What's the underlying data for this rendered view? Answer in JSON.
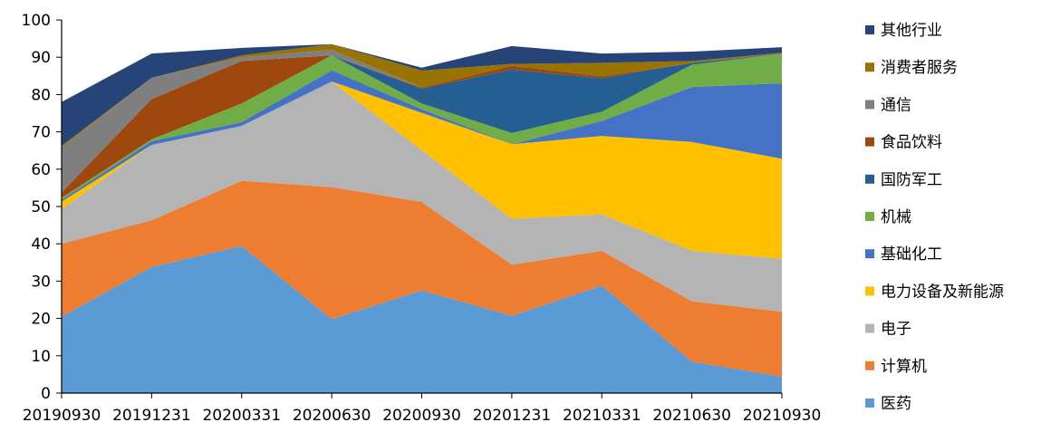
{
  "chart_data": {
    "type": "area",
    "stacked": true,
    "title": "",
    "xlabel": "",
    "ylabel": "",
    "ylim": [
      0,
      100
    ],
    "yticks": [
      0,
      10,
      20,
      30,
      40,
      50,
      60,
      70,
      80,
      90,
      100
    ],
    "grid": false,
    "legend_position": "right",
    "categories": [
      "20190930",
      "20191231",
      "20200331",
      "20200630",
      "20200930",
      "20201231",
      "20210331",
      "20210630",
      "20210930"
    ],
    "series": [
      {
        "name": "医药",
        "color": "#5b9bd5",
        "values": [
          20.5,
          33.8,
          39.4,
          19.8,
          27.5,
          20.7,
          28.8,
          8.4,
          4.4
        ]
      },
      {
        "name": "计算机",
        "color": "#ed7d31",
        "values": [
          19.5,
          12.5,
          17.5,
          35.4,
          23.7,
          13.7,
          9.3,
          16.2,
          17.4
        ]
      },
      {
        "name": "电子",
        "color": "#b4b4b4",
        "values": [
          9.3,
          20.2,
          14.7,
          28.3,
          13.9,
          12.3,
          9.8,
          13.5,
          14.2
        ]
      },
      {
        "name": "电力设备及新能源",
        "color": "#ffc000",
        "values": [
          2.0,
          0.0,
          0.0,
          0.0,
          10.0,
          20.0,
          21.0,
          29.2,
          26.8
        ]
      },
      {
        "name": "基础化工",
        "color": "#4472c4",
        "values": [
          0.5,
          1.0,
          1.0,
          3.0,
          1.0,
          0.0,
          4.0,
          14.7,
          20.2
        ]
      },
      {
        "name": "机械",
        "color": "#70ad47",
        "values": [
          0.5,
          0.5,
          5.0,
          4.0,
          1.5,
          3.0,
          2.5,
          6.0,
          8.0
        ]
      },
      {
        "name": "国防军工",
        "color": "#255e91",
        "values": [
          0.0,
          0.0,
          0.0,
          0.0,
          4.0,
          17.0,
          9.0,
          0.5,
          0.0
        ]
      },
      {
        "name": "食品饮料",
        "color": "#9e480e",
        "values": [
          1.5,
          10.8,
          11.4,
          0.0,
          0.3,
          1.0,
          0.5,
          0.0,
          0.2
        ]
      },
      {
        "name": "通信",
        "color": "#7f7f7f",
        "values": [
          12.0,
          5.7,
          1.0,
          1.5,
          0.0,
          0.0,
          0.0,
          0.0,
          0.0
        ]
      },
      {
        "name": "消费者服务",
        "color": "#997300",
        "values": [
          0.5,
          0.0,
          0.5,
          1.5,
          4.5,
          0.5,
          3.6,
          0.5,
          0.0
        ]
      },
      {
        "name": "其他行业",
        "color": "#264478",
        "values": [
          11.7,
          6.5,
          2.0,
          0.0,
          0.8,
          4.8,
          2.5,
          2.5,
          1.5
        ]
      }
    ],
    "legend_order": [
      "其他行业",
      "消费者服务",
      "通信",
      "食品饮料",
      "国防军工",
      "机械",
      "基础化工",
      "电力设备及新能源",
      "电子",
      "计算机",
      "医药"
    ]
  }
}
